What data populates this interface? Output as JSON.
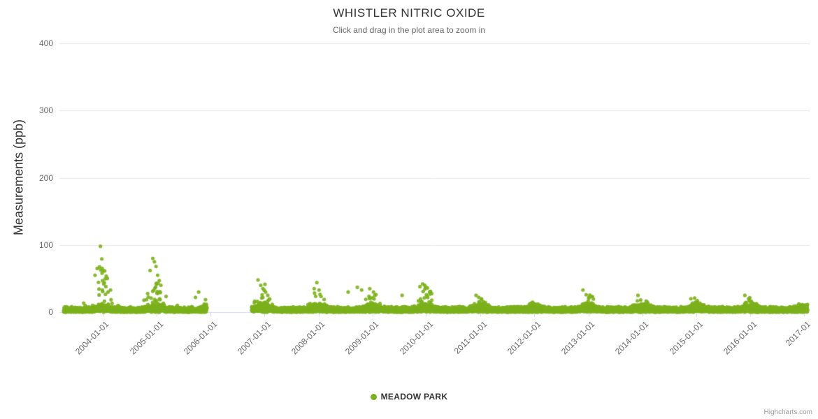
{
  "header": {
    "title": "WHISTLER NITRIC OXIDE",
    "subtitle": "Click and drag in the plot area to zoom in"
  },
  "y_axis": {
    "title": "Measurements (ppb)"
  },
  "legend": {
    "items": [
      {
        "label": "MEADOW PARK",
        "color": "#7cb11d"
      }
    ]
  },
  "credits": {
    "label": "Highcharts.com"
  },
  "chart_data": {
    "type": "scatter",
    "title": "WHISTLER NITRIC OXIDE",
    "subtitle": "Click and drag in the plot area to zoom in",
    "series_name": "MEADOW PARK",
    "xlabel": "",
    "ylabel": "Measurements (ppb)",
    "ylim": [
      0,
      400
    ],
    "yticks": [
      0,
      100,
      200,
      300,
      400
    ],
    "xlim_years": [
      2003.2,
      2017.1
    ],
    "xticks": [
      {
        "year": 2004,
        "label": "2004-01-01"
      },
      {
        "year": 2005,
        "label": "2005-01-01"
      },
      {
        "year": 2006,
        "label": "2006-01-01"
      },
      {
        "year": 2007,
        "label": "2007-01-01"
      },
      {
        "year": 2008,
        "label": "2008-01-01"
      },
      {
        "year": 2009,
        "label": "2009-01-01"
      },
      {
        "year": 2010,
        "label": "2010-01-01"
      },
      {
        "year": 2011,
        "label": "2011-01-01"
      },
      {
        "year": 2012,
        "label": "2012-01-01"
      },
      {
        "year": 2013,
        "label": "2013-01-01"
      },
      {
        "year": 2014,
        "label": "2014-01-01"
      },
      {
        "year": 2015,
        "label": "2015-01-01"
      },
      {
        "year": 2016,
        "label": "2016-01-01"
      },
      {
        "year": 2017,
        "label": "2017-01"
      }
    ],
    "grid": true,
    "legend_position": "bottom-center",
    "marker_color": "#7cb11d",
    "marker_radius": 2.6,
    "grid_color": "#e6e6e6",
    "axis_line_color": "#ccd6eb",
    "data_gaps": [
      [
        2005.93,
        2006.76
      ]
    ],
    "generator": {
      "seed": 7,
      "start": 2003.28,
      "end": 2017.06,
      "step": 0.00274,
      "samples_per_step": 2,
      "season_peak": 0.0,
      "spike_base_prob": 0.03,
      "spike_winter_prob": 0.35,
      "default_amp": 15,
      "winter_amp": {
        "2003": 15,
        "2004": 90,
        "2005": 72,
        "2006": 26,
        "2007": 42,
        "2008": 38,
        "2009": 32,
        "2010": 38,
        "2011": 22,
        "2012": 12,
        "2013": 28,
        "2014": 22,
        "2015": 17,
        "2016": 22,
        "2017": 10
      }
    },
    "peak_points": [
      [
        2003.86,
        55
      ],
      [
        2003.9,
        65
      ],
      [
        2003.96,
        98
      ],
      [
        2003.99,
        58
      ],
      [
        2004.02,
        42
      ],
      [
        2004.06,
        38
      ],
      [
        2004.1,
        30
      ],
      [
        2004.88,
        62
      ],
      [
        2004.93,
        80
      ],
      [
        2004.96,
        75
      ],
      [
        2004.99,
        68
      ],
      [
        2005.02,
        55
      ],
      [
        2005.05,
        47
      ],
      [
        2005.08,
        40
      ],
      [
        2005.72,
        22
      ],
      [
        2005.78,
        30
      ],
      [
        2006.88,
        48
      ],
      [
        2006.93,
        40
      ],
      [
        2006.97,
        35
      ],
      [
        2007.02,
        30
      ],
      [
        2007.06,
        25
      ],
      [
        2007.92,
        35
      ],
      [
        2007.97,
        44
      ],
      [
        2008.01,
        33
      ],
      [
        2008.55,
        30
      ],
      [
        2008.72,
        37
      ],
      [
        2008.8,
        33
      ],
      [
        2008.95,
        35
      ],
      [
        2009.02,
        30
      ],
      [
        2009.55,
        25
      ],
      [
        2009.88,
        38
      ],
      [
        2009.93,
        42
      ],
      [
        2009.97,
        40
      ],
      [
        2010.02,
        36
      ],
      [
        2010.06,
        30
      ],
      [
        2010.92,
        25
      ],
      [
        2010.97,
        22
      ],
      [
        2011.02,
        20
      ],
      [
        2011.93,
        13
      ],
      [
        2012.0,
        12
      ],
      [
        2012.9,
        33
      ],
      [
        2012.96,
        26
      ],
      [
        2013.01,
        22
      ],
      [
        2013.92,
        25
      ],
      [
        2013.97,
        18
      ],
      [
        2014.9,
        20
      ],
      [
        2014.97,
        21
      ],
      [
        2015.02,
        17
      ],
      [
        2015.9,
        25
      ],
      [
        2015.97,
        20
      ],
      [
        2016.02,
        16
      ],
      [
        2016.9,
        12
      ],
      [
        2016.97,
        11
      ],
      [
        2017.02,
        10
      ]
    ]
  }
}
